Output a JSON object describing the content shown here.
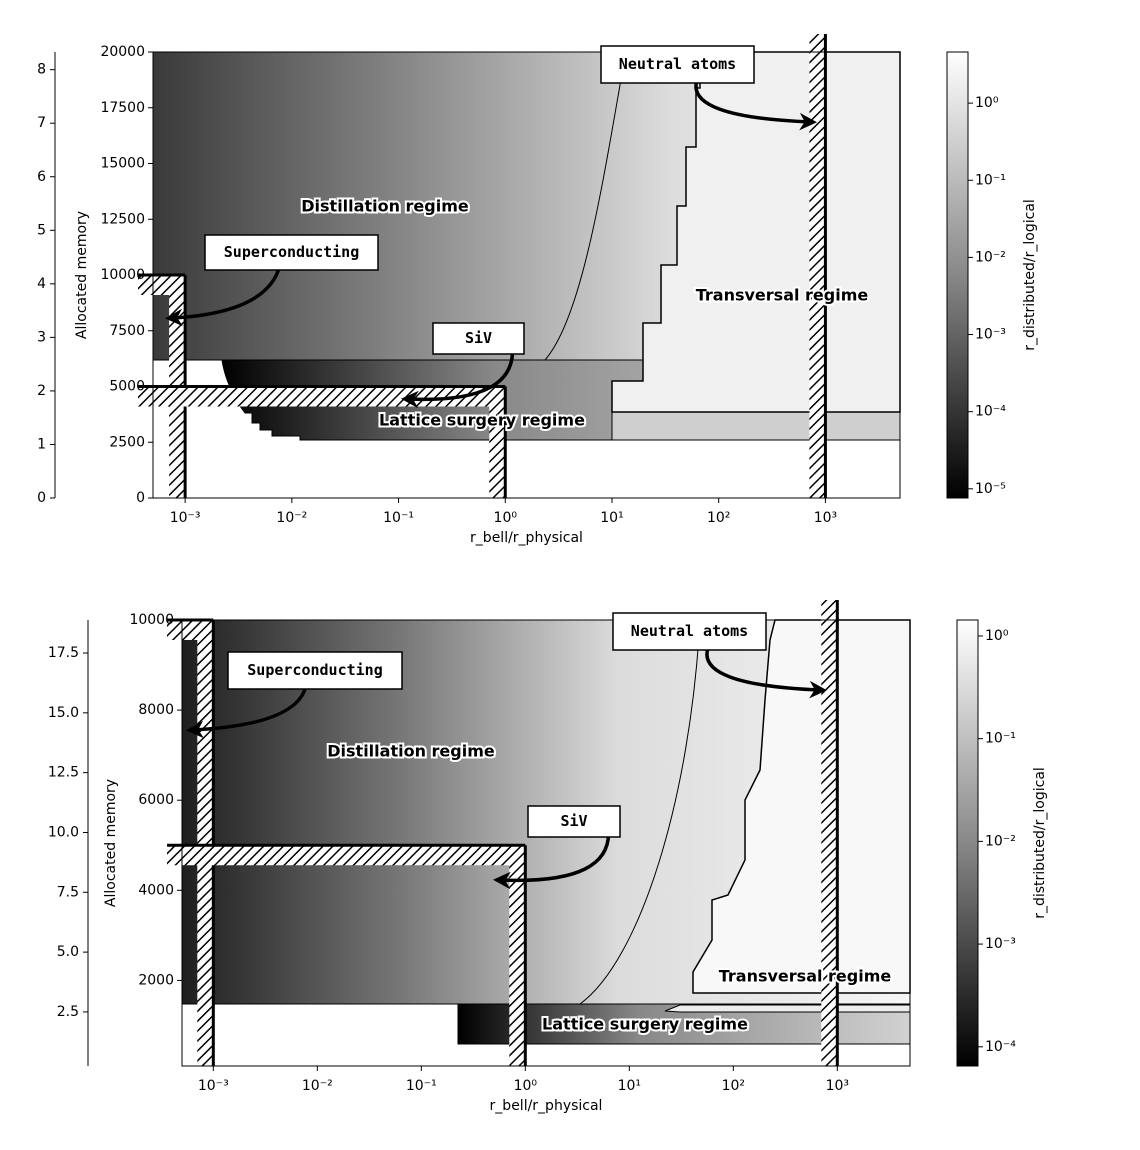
{
  "chart_data": [
    {
      "type": "heatmap",
      "xlabel": "r_bell/r_physical",
      "ylabel": "Allocated memory",
      "xlog": true,
      "xlim": [
        0.0005,
        5000
      ],
      "xticks": [
        {
          "value": 0.001,
          "label": "10⁻³"
        },
        {
          "value": 0.01,
          "label": "10⁻²"
        },
        {
          "value": 0.1,
          "label": "10⁻¹"
        },
        {
          "value": 1,
          "label": "10⁰"
        },
        {
          "value": 10,
          "label": "10¹"
        },
        {
          "value": 100,
          "label": "10²"
        },
        {
          "value": 1000,
          "label": "10³"
        }
      ],
      "ylim": [
        0,
        20000
      ],
      "yticks": [
        0,
        2500,
        5000,
        7500,
        10000,
        12500,
        15000,
        17500,
        20000
      ],
      "y2lim": [
        0,
        8.33
      ],
      "y2ticks": [
        0,
        1,
        2,
        3,
        4,
        5,
        6,
        7,
        8
      ],
      "colorbar": {
        "label": "r_distributed/r_logical",
        "log": true,
        "lim": [
          7.6e-06,
          4.6
        ],
        "ticks": [
          {
            "value": 1e-05,
            "label": "10⁻⁵"
          },
          {
            "value": 0.0001,
            "label": "10⁻⁴"
          },
          {
            "value": 0.001,
            "label": "10⁻³"
          },
          {
            "value": 0.01,
            "label": "10⁻²"
          },
          {
            "value": 0.1,
            "label": "10⁻¹"
          },
          {
            "value": 1,
            "label": "10⁰"
          }
        ]
      },
      "regions": [
        "Distillation regime",
        "Transversal regime",
        "Lattice surgery regime"
      ],
      "platforms": [
        {
          "label": "Superconducting",
          "x": 0.001,
          "y": 10000
        },
        {
          "label": "SiV",
          "x": 1,
          "y": 5000
        },
        {
          "label": "Neutral atoms",
          "x": 1000
        }
      ]
    },
    {
      "type": "heatmap",
      "xlabel": "r_bell/r_physical",
      "ylabel": "Allocated memory",
      "xlog": true,
      "xlim": [
        0.0005,
        5000
      ],
      "xticks": [
        {
          "value": 0.001,
          "label": "10⁻³"
        },
        {
          "value": 0.01,
          "label": "10⁻²"
        },
        {
          "value": 0.1,
          "label": "10⁻¹"
        },
        {
          "value": 1,
          "label": "10⁰"
        },
        {
          "value": 10,
          "label": "10¹"
        },
        {
          "value": 100,
          "label": "10²"
        },
        {
          "value": 1000,
          "label": "10³"
        }
      ],
      "ylim": [
        100,
        10000
      ],
      "yticks": [
        2000,
        4000,
        6000,
        8000,
        10000
      ],
      "y2lim": [
        0.24,
        18.88
      ],
      "y2ticks": [
        2.5,
        {
          "value": 5,
          "label": "5.0"
        },
        7.5,
        {
          "value": 10,
          "label": "10.0"
        },
        12.5,
        {
          "value": 15,
          "label": "15.0"
        },
        17.5
      ],
      "colorbar": {
        "label": "r_distributed/r_logical",
        "log": true,
        "lim": [
          6.5e-05,
          1.43
        ],
        "ticks": [
          {
            "value": 0.0001,
            "label": "10⁻⁴"
          },
          {
            "value": 0.001,
            "label": "10⁻³"
          },
          {
            "value": 0.01,
            "label": "10⁻²"
          },
          {
            "value": 0.1,
            "label": "10⁻¹"
          },
          {
            "value": 1,
            "label": "10⁰"
          }
        ]
      },
      "regions": [
        "Distillation regime",
        "Transversal regime",
        "Lattice surgery regime"
      ],
      "platforms": [
        {
          "label": "Superconducting",
          "x": 0.001,
          "y": 10000
        },
        {
          "label": "SiV",
          "x": 1,
          "y": 5000
        },
        {
          "label": "Neutral atoms",
          "x": 1000
        }
      ]
    }
  ]
}
